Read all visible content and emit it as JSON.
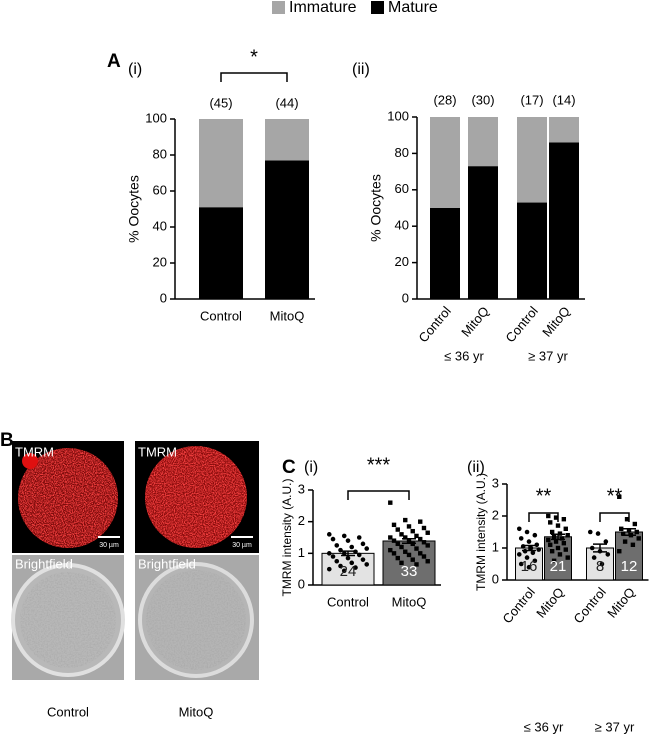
{
  "legend_colors": {
    "Immature": "#a6a6a6",
    "Mature": "#000000"
  },
  "panel_b": {
    "panel": "B",
    "conditions": [
      "Control",
      "MitoQ"
    ],
    "stain_labels": [
      "TMRM",
      "TMRM"
    ],
    "bf_labels": [
      "Brightfield",
      "Brightfield"
    ],
    "scale_labels": [
      "30 µm",
      "30 µm"
    ]
  },
  "chart_data": [
    {
      "type": "stacked_bar",
      "panel": "A",
      "subtitle": "(i)",
      "y_label": "% Oocytes",
      "categories": [
        "Control",
        "MitoQ"
      ],
      "n_labels": [
        "(45)",
        "(44)"
      ],
      "significance": [
        "*"
      ],
      "series": [
        {
          "name": "Immature",
          "color": "#a6a6a6",
          "values": [
            49,
            23
          ]
        },
        {
          "name": "Mature",
          "color": "#000000",
          "values": [
            51,
            77
          ]
        }
      ],
      "ylim": [
        0,
        100
      ],
      "yticks": [
        0,
        20,
        40,
        60,
        80,
        100
      ]
    },
    {
      "type": "stacked_bar",
      "subtitle": "(ii)",
      "y_label": "% Oocytes",
      "categories": [
        "Control",
        "MitoQ",
        "Control",
        "MitoQ"
      ],
      "groups": [
        "≤ 36 yr",
        "≥ 37 yr"
      ],
      "n_labels": [
        "(28)",
        "(30)",
        "(17)",
        "(14)"
      ],
      "series": [
        {
          "name": "Immature",
          "color": "#a6a6a6",
          "values": [
            50,
            27,
            47,
            14
          ]
        },
        {
          "name": "Mature",
          "color": "#000000",
          "values": [
            50,
            73,
            53,
            86
          ]
        }
      ],
      "ylim": [
        0,
        100
      ],
      "yticks": [
        0,
        20,
        40,
        60,
        80,
        100
      ]
    },
    {
      "type": "bar_scatter",
      "panel": "C",
      "subtitle": "(i)",
      "y_label": "TMRM intensity (A.U.)",
      "categories": [
        "Control",
        "MitoQ"
      ],
      "colors": [
        "#e3e3e3",
        "#6e6e6e"
      ],
      "values": [
        1.0,
        1.39
      ],
      "errors": [
        0.07,
        0.07
      ],
      "n": [
        24,
        33
      ],
      "significance": [
        "***"
      ],
      "points": [
        [
          1.6,
          1.55,
          1.5,
          1.45,
          1.4,
          1.3,
          1.25,
          1.2,
          1.15,
          1.1,
          1.05,
          1.0,
          1.0,
          0.95,
          0.9,
          0.85,
          0.8,
          0.75,
          0.7,
          0.65,
          0.6,
          0.55,
          0.5,
          0.45
        ],
        [
          2.6,
          2.05,
          2.0,
          1.9,
          1.85,
          1.8,
          1.75,
          1.7,
          1.65,
          1.6,
          1.55,
          1.5,
          1.5,
          1.45,
          1.4,
          1.4,
          1.35,
          1.3,
          1.3,
          1.25,
          1.2,
          1.15,
          1.1,
          1.05,
          1.0,
          1.0,
          0.95,
          0.9,
          0.85,
          0.8,
          0.75,
          0.7,
          0.65
        ]
      ],
      "ylim": [
        0,
        3
      ],
      "yticks": [
        0,
        1,
        2,
        3
      ]
    },
    {
      "type": "bar_scatter",
      "subtitle": "(ii)",
      "y_label": "TMRM intensity (A.U.)",
      "categories": [
        "Control",
        "MitoQ",
        "Control",
        "MitoQ"
      ],
      "groups": [
        "≤ 36 yr",
        "≥ 37 yr"
      ],
      "colors": [
        "#e3e3e3",
        "#6e6e6e",
        "#e3e3e3",
        "#6e6e6e"
      ],
      "values": [
        1.0,
        1.35,
        1.0,
        1.5
      ],
      "errors": [
        0.08,
        0.08,
        0.12,
        0.1
      ],
      "n": [
        16,
        21,
        8,
        12
      ],
      "significance": [
        "**",
        "**"
      ],
      "points": [
        [
          1.6,
          1.5,
          1.4,
          1.3,
          1.2,
          1.1,
          1.05,
          1.0,
          0.95,
          0.9,
          0.85,
          0.8,
          0.7,
          0.6,
          0.5,
          0.4
        ],
        [
          2.0,
          1.95,
          1.9,
          1.8,
          1.7,
          1.6,
          1.5,
          1.45,
          1.4,
          1.35,
          1.3,
          1.25,
          1.2,
          1.15,
          1.1,
          1.0,
          0.95,
          0.9,
          0.8,
          0.7,
          0.6
        ],
        [
          1.5,
          1.45,
          1.2,
          1.0,
          0.9,
          0.8,
          0.7,
          0.5
        ],
        [
          2.6,
          1.9,
          1.75,
          1.6,
          1.55,
          1.5,
          1.45,
          1.4,
          1.3,
          1.2,
          1.1,
          0.9
        ]
      ],
      "ylim": [
        0,
        3
      ],
      "yticks": [
        0,
        1,
        2,
        3
      ]
    }
  ]
}
